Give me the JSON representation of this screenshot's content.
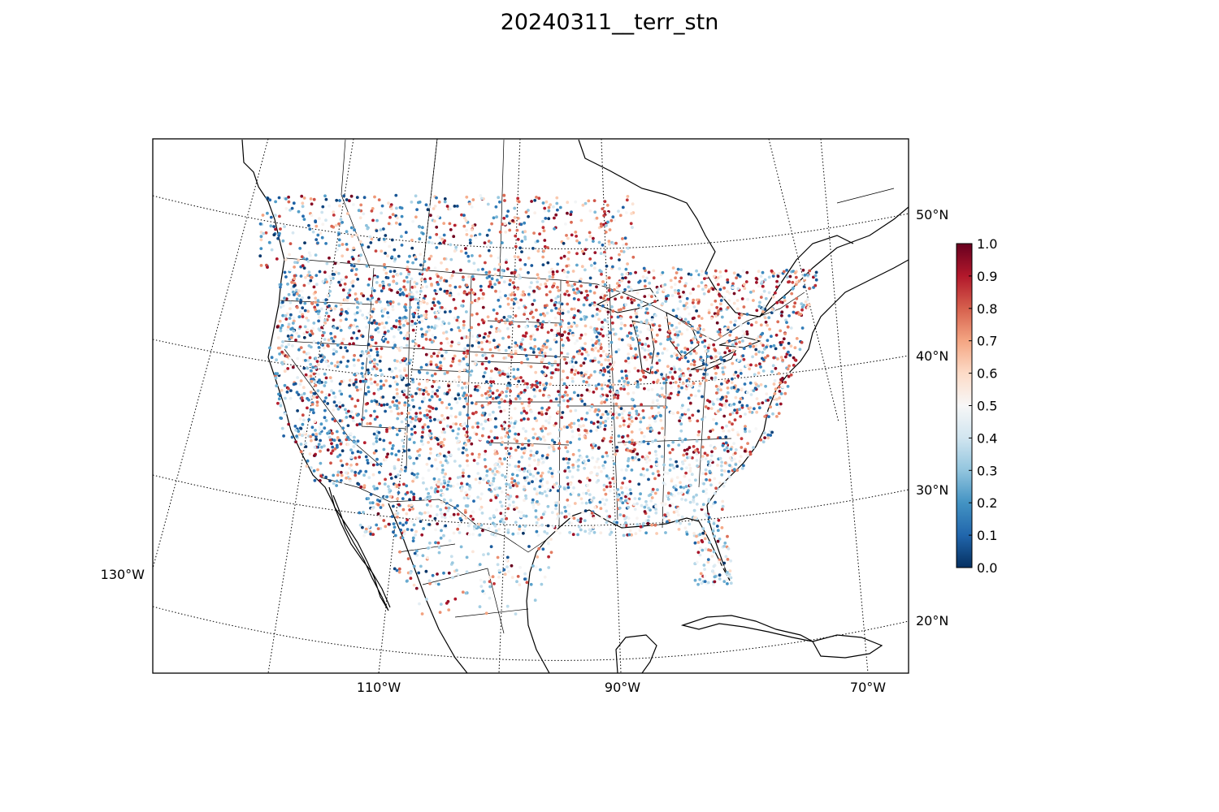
{
  "figure": {
    "title": "20240311__terr_stn"
  },
  "map": {
    "projection": "lambert-conformal",
    "frame_color": "#000000",
    "graticule_style": "dotted",
    "lat_labels": [
      "50°N",
      "40°N",
      "30°N",
      "20°N"
    ],
    "lon_labels": [
      "130°W",
      "110°W",
      "90°W",
      "70°W"
    ],
    "features": [
      "coastlines",
      "country-borders",
      "state-borders",
      "great-lakes"
    ]
  },
  "colorbar": {
    "colormap": "RdBu_r",
    "stops": [
      "#053061",
      "#2166ac",
      "#4393c3",
      "#92c5de",
      "#d1e5f0",
      "#f7f7f7",
      "#fddbc7",
      "#f4a582",
      "#d6604d",
      "#b2182b",
      "#67001f"
    ],
    "ticks": [
      "0.0",
      "0.1",
      "0.2",
      "0.3",
      "0.4",
      "0.5",
      "0.6",
      "0.7",
      "0.8",
      "0.9",
      "1.0"
    ],
    "range": [
      0.0,
      1.0
    ]
  },
  "chart_data": {
    "type": "scatter",
    "title": "20240311__terr_stn",
    "description_of_values": "station values colored on 0.0–1.0 scale",
    "point_density": "dense station network over continental US and southern Canada, sparser over Mexico and Caribbean"
  }
}
